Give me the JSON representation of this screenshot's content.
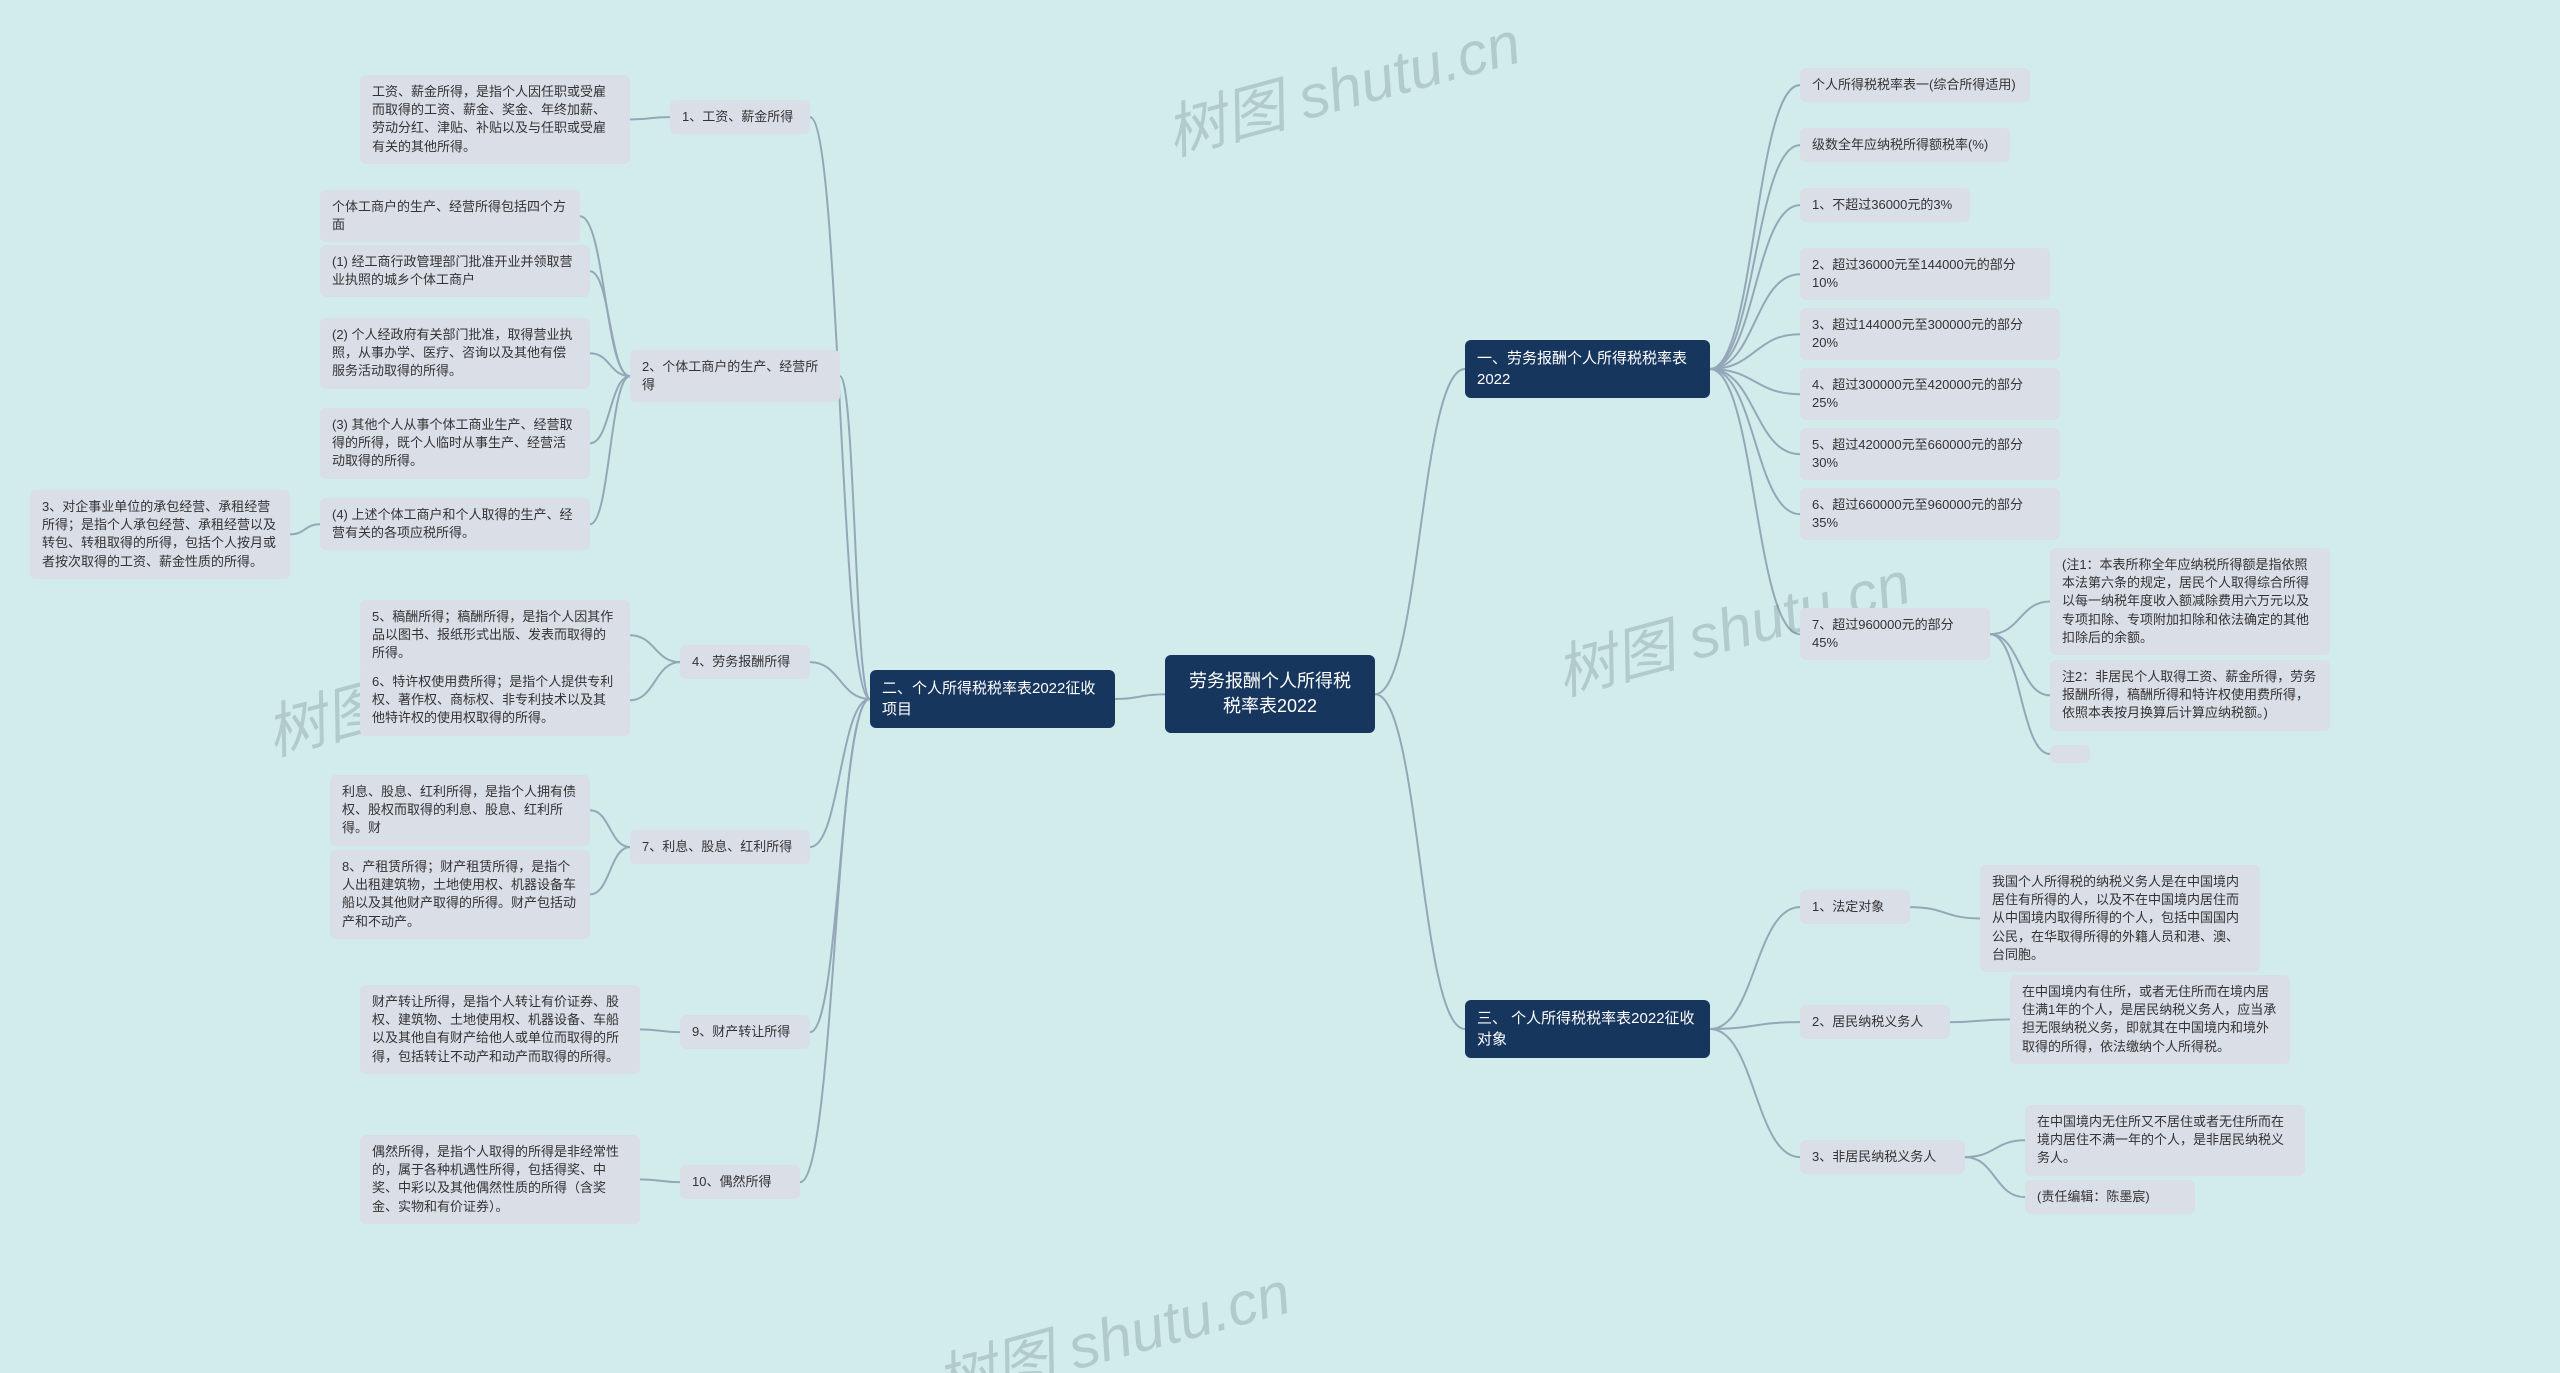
{
  "background_color": "#d2ecec",
  "root_node_bg": "#17365d",
  "root_node_fg": "#ffffff",
  "sub_node_bg": "#17365d",
  "sub_node_fg": "#ffffff",
  "leaf_node_bg": "#d9dee7",
  "leaf_node_fg": "#333333",
  "connector_color": "#94a7b8",
  "watermark_text": "树图 shutu.cn",
  "watermark_color": "rgba(120,140,140,0.35)",
  "root": {
    "label": "劳务报酬个人所得税税率表2022"
  },
  "right": {
    "branch1": {
      "label": "一、劳务报酬个人所得税税率表2022",
      "items": [
        "个人所得税税率表一(综合所得适用)",
        "级数全年应纳税所得额税率(%)",
        "1、不超过36000元的3%",
        "2、超过36000元至144000元的部分10%",
        "3、超过144000元至300000元的部分20%",
        "4、超过300000元至420000元的部分25%",
        "5、超过420000元至660000元的部分30%",
        "6、超过660000元至960000元的部分35%",
        "7、超过960000元的部分45%"
      ],
      "notes": {
        "a": "(注1：本表所称全年应纳税所得额是指依照本法第六条的规定，居民个人取得综合所得以每一纳税年度收入额减除费用六万元以及专项扣除、专项附加扣除和依法确定的其他扣除后的余额。",
        "b": "注2：非居民个人取得工资、薪金所得，劳务报酬所得，稿酬所得和特许权使用费所得，依照本表按月换算后计算应纳税额。)"
      }
    },
    "branch3": {
      "label": "三、 个人所得税税率表2022征收对象",
      "items": {
        "a": {
          "label": "1、法定对象",
          "desc": "我国个人所得税的纳税义务人是在中国境内居住有所得的人，以及不在中国境内居住而从中国境内取得所得的个人，包括中国国内公民，在华取得所得的外籍人员和港、澳、台同胞。"
        },
        "b": {
          "label": "2、居民纳税义务人",
          "desc": "在中国境内有住所，或者无住所而在境内居住满1年的个人，是居民纳税义务人，应当承担无限纳税义务，即就其在中国境内和境外取得的所得，依法缴纳个人所得税。"
        },
        "c": {
          "label": "3、非居民纳税义务人",
          "desc1": "在中国境内无住所又不居住或者无住所而在境内居住不满一年的个人，是非居民纳税义务人。",
          "desc2": "(责任编辑：陈墨宸)"
        }
      }
    }
  },
  "left": {
    "branch2": {
      "label": "二、个人所得税税率表2022征收项目",
      "items": {
        "i1": {
          "label": "1、工资、薪金所得",
          "desc": "工资、薪金所得，是指个人因任职或受雇而取得的工资、薪金、奖金、年终加薪、劳动分红、津贴、补贴以及与任职或受雇有关的其他所得。"
        },
        "i2": {
          "label": "2、个体工商户的生产、经营所得",
          "subs": {
            "a": "个体工商户的生产、经营所得包括四个方面",
            "b": "(1) 经工商行政管理部门批准开业并领取营业执照的城乡个体工商户",
            "c": "(2) 个人经政府有关部门批准，取得营业执照，从事办学、医疗、咨询以及其他有偿服务活动取得的所得。",
            "d": "(3) 其他个人从事个体工商业生产、经营取得的所得，既个人临时从事生产、经营活动取得的所得。",
            "e": "(4) 上述个体工商户和个人取得的生产、经营有关的各项应税所得。"
          },
          "extra": "3、对企事业单位的承包经营、承租经营所得；是指个人承包经营、承租经营以及转包、转租取得的所得，包括个人按月或者按次取得的工资、薪金性质的所得。"
        },
        "i4": {
          "label": "4、劳务报酬所得",
          "subs": {
            "a": "5、稿酬所得；稿酬所得，是指个人因其作品以图书、报纸形式出版、发表而取得的所得。",
            "b": "6、特许权使用费所得；是指个人提供专利权、著作权、商标权、非专利技术以及其他特许权的使用权取得的所得。"
          }
        },
        "i7": {
          "label": "7、利息、股息、红利所得",
          "subs": {
            "a": "利息、股息、红利所得，是指个人拥有债权、股权而取得的利息、股息、红利所得。财",
            "b": "8、产租赁所得；财产租赁所得，是指个人出租建筑物，土地使用权、机器设备车船以及其他财产取得的所得。财产包括动产和不动产。"
          }
        },
        "i9": {
          "label": "9、财产转让所得",
          "desc": "财产转让所得，是指个人转让有价证券、股权、建筑物、土地使用权、机器设备、车船以及其他自有财产给他人或单位而取得的所得，包括转让不动产和动产而取得的所得。"
        },
        "i10": {
          "label": "10、偶然所得",
          "desc": "偶然所得，是指个人取得的所得是非经常性的，属于各种机遇性所得，包括得奖、中奖、中彩以及其他偶然性质的所得（含奖金、实物和有价证券）。"
        }
      }
    }
  }
}
